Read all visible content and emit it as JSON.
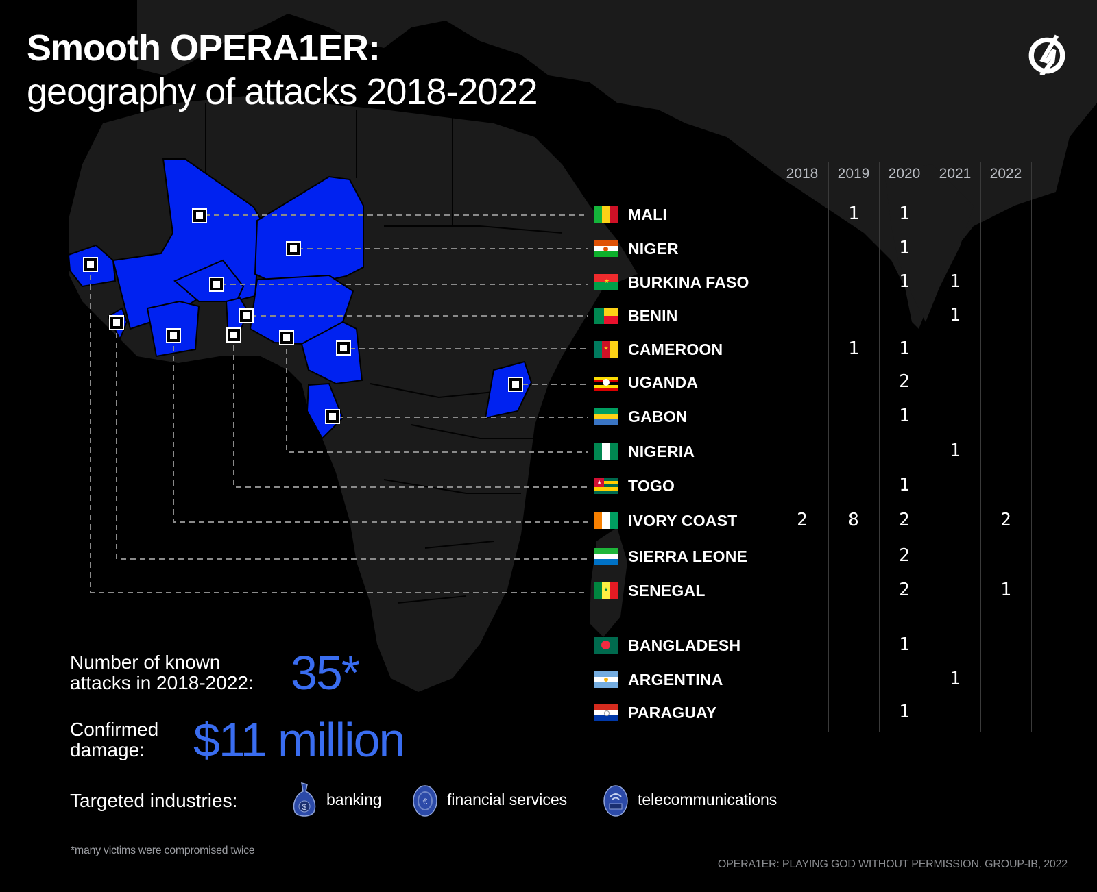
{
  "title": {
    "line1": "Smooth OPERA1ER:",
    "line2": "geography of attacks 2018-2022"
  },
  "logo": {
    "icon": "group-ib-logo-icon"
  },
  "colors": {
    "background": "#000000",
    "land": "#1b1b1b",
    "highlight": "#0022f0",
    "accent_text": "#3a6df0",
    "connector": "#8a8a8a"
  },
  "table": {
    "years": [
      "2018",
      "2019",
      "2020",
      "2021",
      "2022"
    ],
    "rows": [
      {
        "country": "MALI",
        "flag": "mali-flag-icon",
        "values": [
          "",
          "1",
          "1",
          "",
          ""
        ]
      },
      {
        "country": "NIGER",
        "flag": "niger-flag-icon",
        "values": [
          "",
          "",
          "1",
          "",
          ""
        ]
      },
      {
        "country": "BURKINA FASO",
        "flag": "burkina-faso-flag-icon",
        "values": [
          "",
          "",
          "1",
          "1",
          ""
        ]
      },
      {
        "country": "BENIN",
        "flag": "benin-flag-icon",
        "values": [
          "",
          "",
          "",
          "1",
          ""
        ]
      },
      {
        "country": "CAMEROON",
        "flag": "cameroon-flag-icon",
        "values": [
          "",
          "1",
          "1",
          "",
          ""
        ]
      },
      {
        "country": "UGANDA",
        "flag": "uganda-flag-icon",
        "values": [
          "",
          "",
          "2",
          "",
          ""
        ]
      },
      {
        "country": "GABON",
        "flag": "gabon-flag-icon",
        "values": [
          "",
          "",
          "1",
          "",
          ""
        ]
      },
      {
        "country": "NIGERIA",
        "flag": "nigeria-flag-icon",
        "values": [
          "",
          "",
          "",
          "1",
          ""
        ]
      },
      {
        "country": "TOGO",
        "flag": "togo-flag-icon",
        "values": [
          "",
          "",
          "1",
          "",
          ""
        ]
      },
      {
        "country": "IVORY COAST",
        "flag": "ivory-coast-flag-icon",
        "values": [
          "2",
          "8",
          "2",
          "",
          "2"
        ]
      },
      {
        "country": "SIERRA LEONE",
        "flag": "sierra-leone-flag-icon",
        "values": [
          "",
          "",
          "2",
          "",
          ""
        ]
      },
      {
        "country": "SENEGAL",
        "flag": "senegal-flag-icon",
        "values": [
          "",
          "",
          "2",
          "",
          "1"
        ]
      },
      {
        "country": "BANGLADESH",
        "flag": "bangladesh-flag-icon",
        "values": [
          "",
          "",
          "1",
          "",
          ""
        ]
      },
      {
        "country": "ARGENTINA",
        "flag": "argentina-flag-icon",
        "values": [
          "",
          "",
          "",
          "1",
          ""
        ]
      },
      {
        "country": "PARAGUAY",
        "flag": "paraguay-flag-icon",
        "values": [
          "",
          "",
          "1",
          "",
          ""
        ]
      }
    ]
  },
  "stats": {
    "attacks_label_1": "Number of known",
    "attacks_label_2": "attacks in 2018-2022:",
    "attacks_value": "35*",
    "damage_label_1": "Confirmed",
    "damage_label_2": "damage:",
    "damage_value": "$11 million"
  },
  "industries": {
    "label": "Targeted industries:",
    "items": [
      {
        "label": "banking",
        "icon": "money-bag-icon"
      },
      {
        "label": "financial services",
        "icon": "coin-icon"
      },
      {
        "label": "telecommunications",
        "icon": "wireless-card-icon"
      }
    ]
  },
  "footnote": "*many victims were compromised twice",
  "source": "OPERA1ER: PLAYING GOD WITHOUT PERMISSION. GROUP-IB, 2022",
  "chart_data": {
    "type": "table",
    "title": "Smooth OPERA1ER: geography of attacks 2018-2022",
    "columns": [
      "2018",
      "2019",
      "2020",
      "2021",
      "2022"
    ],
    "rows": [
      {
        "country": "Mali",
        "values": [
          null,
          1,
          1,
          null,
          null
        ]
      },
      {
        "country": "Niger",
        "values": [
          null,
          null,
          1,
          null,
          null
        ]
      },
      {
        "country": "Burkina Faso",
        "values": [
          null,
          null,
          1,
          1,
          null
        ]
      },
      {
        "country": "Benin",
        "values": [
          null,
          null,
          null,
          1,
          null
        ]
      },
      {
        "country": "Cameroon",
        "values": [
          null,
          1,
          1,
          null,
          null
        ]
      },
      {
        "country": "Uganda",
        "values": [
          null,
          null,
          2,
          null,
          null
        ]
      },
      {
        "country": "Gabon",
        "values": [
          null,
          null,
          1,
          null,
          null
        ]
      },
      {
        "country": "Nigeria",
        "values": [
          null,
          null,
          null,
          1,
          null
        ]
      },
      {
        "country": "Togo",
        "values": [
          null,
          null,
          1,
          null,
          null
        ]
      },
      {
        "country": "Ivory Coast",
        "values": [
          2,
          8,
          2,
          null,
          2
        ]
      },
      {
        "country": "Sierra Leone",
        "values": [
          null,
          null,
          2,
          null,
          null
        ]
      },
      {
        "country": "Senegal",
        "values": [
          null,
          null,
          2,
          null,
          1
        ]
      },
      {
        "country": "Bangladesh",
        "values": [
          null,
          null,
          1,
          null,
          null
        ]
      },
      {
        "country": "Argentina",
        "values": [
          null,
          null,
          null,
          1,
          null
        ]
      },
      {
        "country": "Paraguay",
        "values": [
          null,
          null,
          1,
          null,
          null
        ]
      }
    ],
    "total_attacks": "35*",
    "confirmed_damage": "$11 million",
    "highlighted_map_countries": [
      "Mali",
      "Niger",
      "Burkina Faso",
      "Benin",
      "Cameroon",
      "Uganda",
      "Gabon",
      "Nigeria",
      "Togo",
      "Ivory Coast",
      "Sierra Leone",
      "Senegal"
    ]
  }
}
